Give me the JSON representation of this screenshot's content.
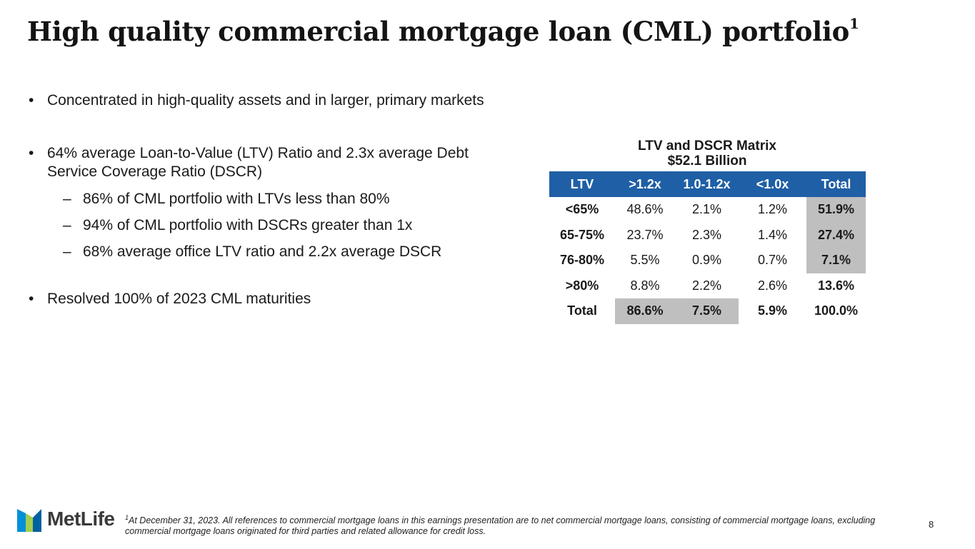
{
  "title": "High quality commercial mortgage loan (CML) portfolio",
  "title_sup": "1",
  "bullets": {
    "b1": "Concentrated in high-quality assets and in larger, primary markets",
    "b2": "64% average Loan-to-Value (LTV) Ratio and 2.3x average Debt Service Coverage Ratio (DSCR)",
    "s1": "86% of CML portfolio with LTVs less than 80%",
    "s2": "94% of CML portfolio with DSCRs greater than 1x",
    "s3": "68% average office LTV ratio and 2.2x average DSCR",
    "b3": "Resolved 100% of 2023 CML maturities"
  },
  "symbols": {
    "bullet": "•",
    "dash": "–"
  },
  "matrix": {
    "title_line1": "LTV and DSCR Matrix",
    "title_line2": "$52.1 Billion",
    "headers": [
      "LTV",
      ">1.2x",
      "1.0-1.2x",
      "<1.0x",
      "Total"
    ],
    "rows": [
      [
        "<65%",
        "48.6%",
        "2.1%",
        "1.2%",
        "51.9%"
      ],
      [
        "65-75%",
        "23.7%",
        "2.3%",
        "1.4%",
        "27.4%"
      ],
      [
        "76-80%",
        "5.5%",
        "0.9%",
        "0.7%",
        "7.1%"
      ],
      [
        ">80%",
        "8.8%",
        "2.2%",
        "2.6%",
        "13.6%"
      ],
      [
        "Total",
        "86.6%",
        "7.5%",
        "5.9%",
        "100.0%"
      ]
    ],
    "header_color": "#1f5fa6",
    "highlight_color": "#bfbfbf"
  },
  "logo": {
    "text": "MetLife",
    "colors": [
      "#0090da",
      "#a4ce4e",
      "#0061a0"
    ]
  },
  "footnote": {
    "sup": "1",
    "text": "At December 31, 2023. All references to commercial mortgage loans in this earnings presentation are to net commercial mortgage loans, consisting of commercial mortgage loans, excluding commercial mortgage loans originated for third parties and related allowance for credit loss."
  },
  "page_number": "8"
}
